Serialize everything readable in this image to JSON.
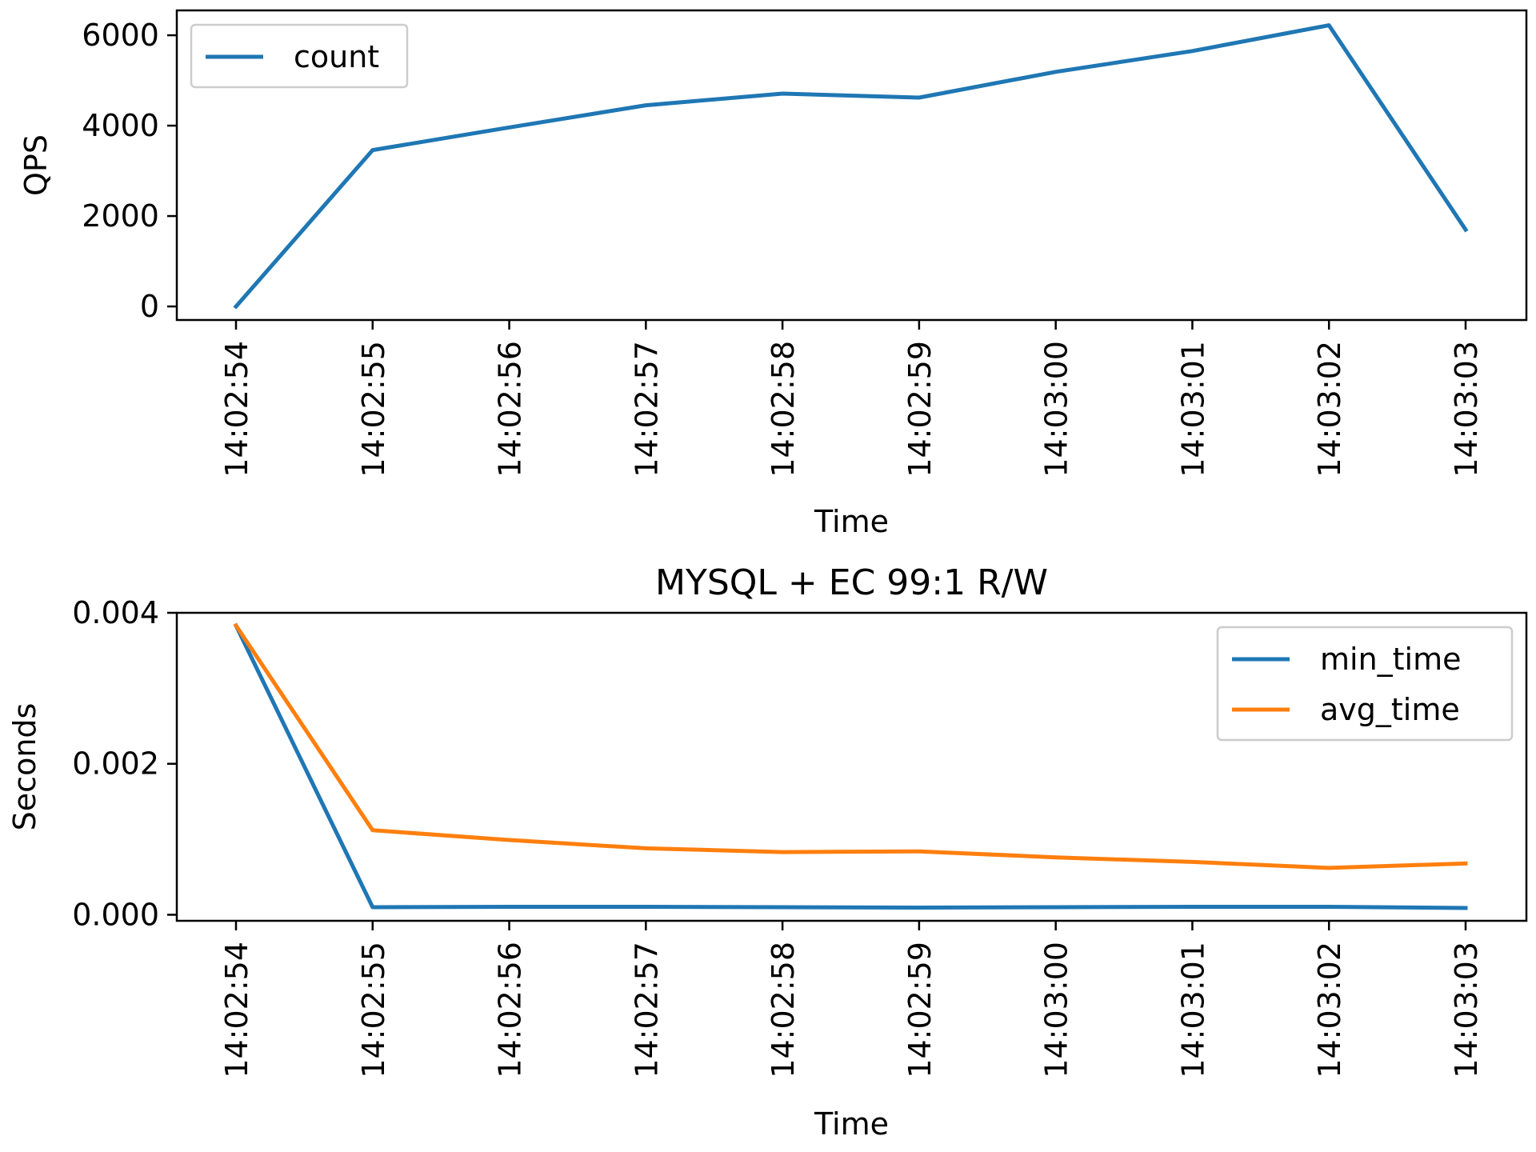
{
  "chart_data": [
    {
      "type": "line",
      "title": "",
      "xlabel": "Time",
      "ylabel": "QPS",
      "categories": [
        "14:02:54",
        "14:02:55",
        "14:02:56",
        "14:02:57",
        "14:02:58",
        "14:02:59",
        "14:03:00",
        "14:03:01",
        "14:03:02",
        "14:03:03"
      ],
      "yticks": [
        "0",
        "2000",
        "4000",
        "6000"
      ],
      "ylim": [
        -300,
        6550
      ],
      "legend": "upper-left",
      "grid": false,
      "series": [
        {
          "name": "count",
          "color": "#1f77b4",
          "values": [
            0,
            3460,
            3960,
            4450,
            4710,
            4620,
            5190,
            5650,
            6220,
            1700
          ]
        }
      ]
    },
    {
      "type": "line",
      "title": "MYSQL + EC 99:1 R/W",
      "xlabel": "Time",
      "ylabel": "Seconds",
      "categories": [
        "14:02:54",
        "14:02:55",
        "14:02:56",
        "14:02:57",
        "14:02:58",
        "14:02:59",
        "14:03:00",
        "14:03:01",
        "14:03:02",
        "14:03:03"
      ],
      "yticks": [
        "0.000",
        "0.002",
        "0.004"
      ],
      "ylim": [
        -8e-05,
        0.004
      ],
      "legend": "upper-right",
      "grid": false,
      "series": [
        {
          "name": "min_time",
          "color": "#1f77b4",
          "values": [
            0.00383,
            0.0001,
            0.000105,
            0.000105,
            0.0001,
            9.5e-05,
            0.0001,
            0.000105,
            0.000105,
            9e-05
          ]
        },
        {
          "name": "avg_time",
          "color": "#ff7f0e",
          "values": [
            0.00383,
            0.00112,
            0.00099,
            0.00088,
            0.00083,
            0.00084,
            0.00076,
            0.0007,
            0.00062,
            0.00068
          ]
        }
      ]
    }
  ]
}
